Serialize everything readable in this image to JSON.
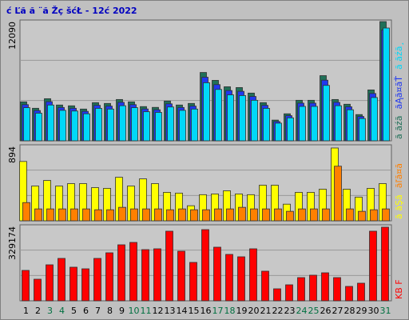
{
  "title": "ć Ľă ă ¨ă Žç šćŁ - 12ć 2022",
  "chart_data": [
    {
      "type": "bar",
      "ylim": [
        0,
        12090
      ],
      "yticks": [
        12090
      ],
      "series": [
        {
          "name": "ă ăźă",
          "color": "#207058",
          "values": [
            3950,
            3300,
            4270,
            3630,
            3550,
            3220,
            3870,
            3790,
            4190,
            3950,
            3470,
            3390,
            4030,
            3630,
            3790,
            6930,
            6130,
            5480,
            5400,
            4840,
            3870,
            2100,
            2740,
            4110,
            4110,
            6610,
            4190,
            3710,
            2660,
            5160,
            12090
          ]
        },
        {
          "name": "ăĄă¤ăŤ",
          "color": "#2038f0",
          "values": [
            3670,
            3070,
            3970,
            3380,
            3300,
            2990,
            3600,
            3520,
            3900,
            3670,
            3230,
            3150,
            3750,
            3380,
            3520,
            6450,
            5700,
            5100,
            5020,
            4500,
            3600,
            1950,
            2550,
            3820,
            3820,
            6150,
            3900,
            3450,
            2470,
            4800,
            11240
          ]
        },
        {
          "name": "ă ăźă¸",
          "color": "#00d8f8",
          "values": [
            3360,
            2800,
            3630,
            3090,
            3020,
            2740,
            3290,
            3220,
            3560,
            3360,
            2950,
            2880,
            3430,
            3090,
            3220,
            5890,
            5210,
            4660,
            4590,
            4110,
            3290,
            1790,
            2330,
            3490,
            3490,
            5620,
            3560,
            3150,
            2260,
            4390,
            11440
          ]
        }
      ]
    },
    {
      "type": "bar",
      "ylim": [
        0,
        894
      ],
      "yticks": [
        894
      ],
      "series": [
        {
          "name": "ă ăŞă",
          "color": "#ffff00",
          "values": [
            713,
            418,
            485,
            418,
            447,
            447,
            399,
            390,
            523,
            418,
            504,
            447,
            342,
            333,
            181,
            314,
            323,
            361,
            323,
            314,
            428,
            428,
            200,
            342,
            342,
            380,
            875,
            380,
            285,
            390,
            447
          ]
        },
        {
          "name": "ăľă¤ă",
          "color": "#ff8000",
          "values": [
            219,
            143,
            143,
            143,
            143,
            143,
            133,
            133,
            162,
            143,
            143,
            143,
            133,
            143,
            133,
            133,
            143,
            143,
            162,
            143,
            143,
            143,
            114,
            143,
            143,
            143,
            656,
            143,
            114,
            133,
            143
          ]
        }
      ]
    },
    {
      "type": "bar",
      "ylim": [
        0,
        329174
      ],
      "yticks": [
        329174
      ],
      "categories": [
        "1",
        "2",
        "3",
        "4",
        "5",
        "6",
        "7",
        "8",
        "9",
        "10",
        "11",
        "12",
        "13",
        "14",
        "15",
        "16",
        "17",
        "18",
        "19",
        "20",
        "21",
        "22",
        "23",
        "24",
        "25",
        "26",
        "27",
        "28",
        "29",
        "30",
        "31"
      ],
      "category_colors": [
        "#000",
        "#000",
        "#007040",
        "#007040",
        "#000",
        "#000",
        "#000",
        "#000",
        "#000",
        "#007040",
        "#007040",
        "#000",
        "#000",
        "#000",
        "#000",
        "#000",
        "#007040",
        "#007040",
        "#000",
        "#000",
        "#000",
        "#000",
        "#000",
        "#007040",
        "#007040",
        "#000",
        "#000",
        "#000",
        "#000",
        "#000",
        "#007040"
      ],
      "series": [
        {
          "name": "KB F",
          "color": "#ff0000",
          "values": [
            134500,
            95600,
            159300,
            187600,
            148700,
            141600,
            187600,
            212400,
            247800,
            258400,
            226500,
            230100,
            308000,
            219500,
            169900,
            315000,
            237200,
            205300,
            194700,
            230100,
            131000,
            53100,
            70800,
            102700,
            113300,
            123900,
            102700,
            63700,
            77900,
            308000,
            325700
          ]
        }
      ]
    }
  ]
}
